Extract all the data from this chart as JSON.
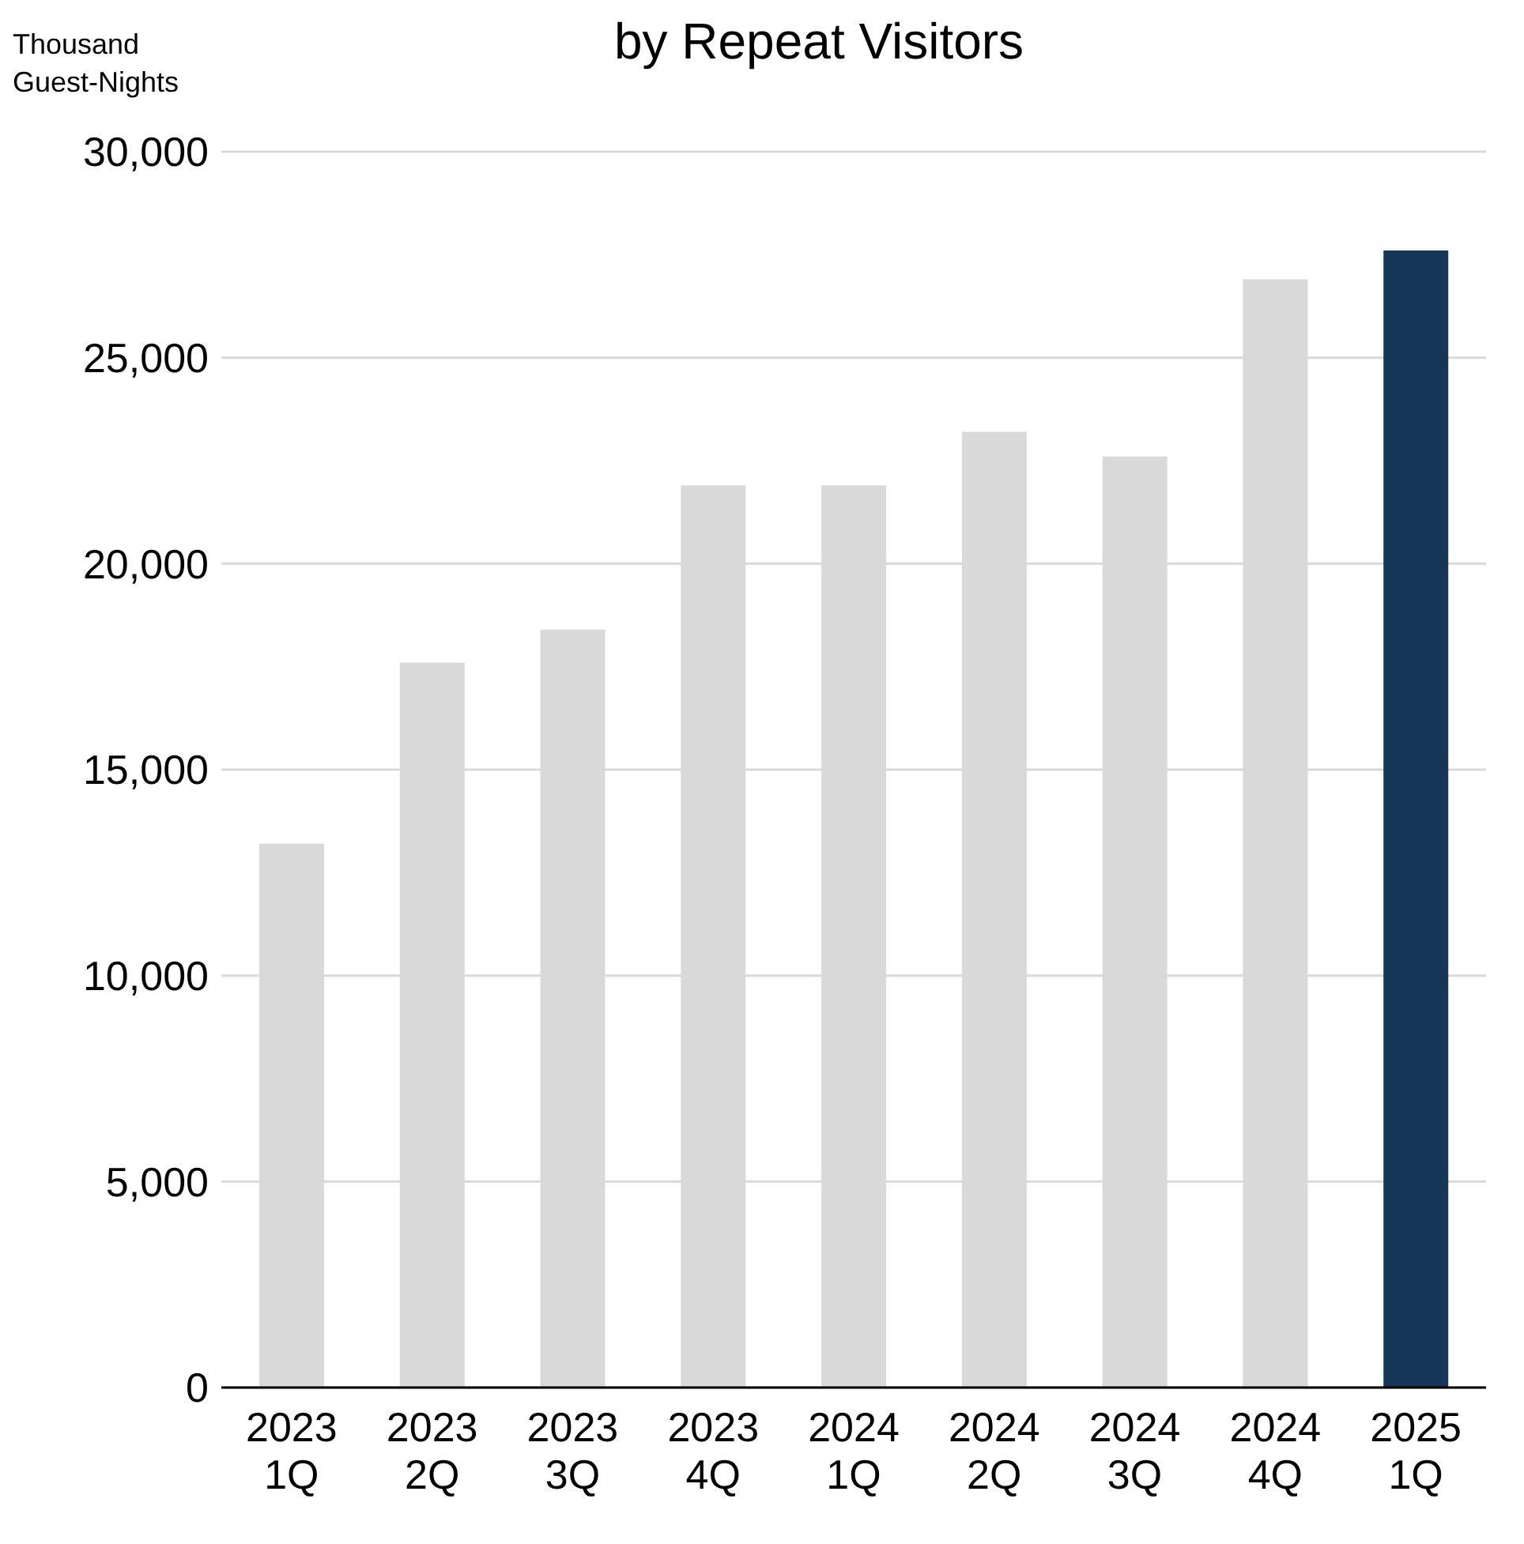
{
  "chart_data": {
    "type": "bar",
    "title": "by Repeat Visitors",
    "ylabel": "Thousand\nGuest-Nights",
    "categories": [
      "2023\n1Q",
      "2023\n2Q",
      "2023\n3Q",
      "2023\n4Q",
      "2024\n1Q",
      "2024\n2Q",
      "2024\n3Q",
      "2024\n4Q",
      "2025\n1Q"
    ],
    "values": [
      13200,
      17600,
      18400,
      21900,
      21900,
      23200,
      22600,
      26900,
      27600
    ],
    "colors": [
      "#d9d9d9",
      "#d9d9d9",
      "#d9d9d9",
      "#d9d9d9",
      "#d9d9d9",
      "#d9d9d9",
      "#d9d9d9",
      "#d9d9d9",
      "#153657"
    ],
    "ylim": [
      0,
      30000
    ],
    "yticks": [
      0,
      {
        "value": 5000,
        "label": "5,000"
      },
      {
        "value": 10000,
        "label": "10,000"
      },
      {
        "value": 15000,
        "label": "15,000"
      },
      {
        "value": 20000,
        "label": "20,000"
      },
      {
        "value": 25000,
        "label": "25,000"
      },
      {
        "value": 30000,
        "label": "30,000"
      }
    ],
    "grid": "y"
  }
}
